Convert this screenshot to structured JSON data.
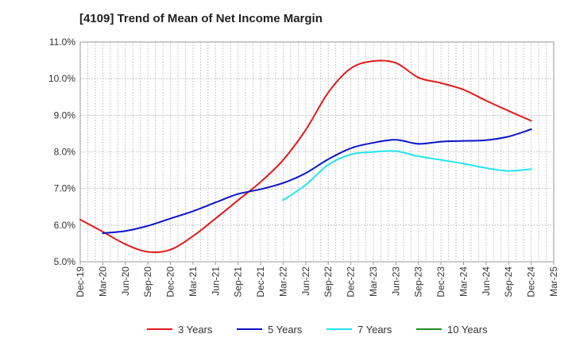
{
  "chart_data": {
    "type": "line",
    "title": "[4109]  Trend of Mean of Net Income Margin",
    "xlabel": "",
    "ylabel": "",
    "x_ticks": [
      "Dec-19",
      "Mar-20",
      "Jun-20",
      "Sep-20",
      "Dec-20",
      "Mar-21",
      "Jun-21",
      "Sep-21",
      "Dec-21",
      "Mar-22",
      "Jun-22",
      "Sep-22",
      "Dec-22",
      "Mar-23",
      "Jun-23",
      "Sep-23",
      "Dec-23",
      "Mar-24",
      "Jun-24",
      "Sep-24",
      "Dec-24",
      "Mar-25"
    ],
    "y_ticks": [
      "5.0%",
      "6.0%",
      "7.0%",
      "8.0%",
      "9.0%",
      "10.0%",
      "11.0%"
    ],
    "ylim": [
      5.0,
      11.0
    ],
    "grid": true,
    "legend_position": "bottom",
    "series": [
      {
        "name": "3 Years",
        "color": "#e31a1c",
        "x": [
          "Dec-19",
          "Mar-20",
          "Jun-20",
          "Sep-20",
          "Dec-20",
          "Mar-21",
          "Jun-21",
          "Sep-21",
          "Dec-21",
          "Mar-22",
          "Jun-22",
          "Sep-22",
          "Dec-22",
          "Mar-23",
          "Jun-23",
          "Sep-23",
          "Dec-23",
          "Mar-24",
          "Jun-24",
          "Sep-24",
          "Dec-24"
        ],
        "values": [
          6.15,
          5.82,
          5.48,
          5.27,
          5.33,
          5.7,
          6.18,
          6.68,
          7.18,
          7.78,
          8.6,
          9.62,
          10.28,
          10.48,
          10.43,
          10.03,
          9.88,
          9.7,
          9.4,
          9.12,
          8.85
        ]
      },
      {
        "name": "5 Years",
        "color": "#0a14c8",
        "x": [
          "Mar-20",
          "Jun-20",
          "Sep-20",
          "Dec-20",
          "Mar-21",
          "Jun-21",
          "Sep-21",
          "Dec-21",
          "Mar-22",
          "Jun-22",
          "Sep-22",
          "Dec-22",
          "Mar-23",
          "Jun-23",
          "Sep-23",
          "Dec-23",
          "Mar-24",
          "Jun-24",
          "Sep-24",
          "Dec-24"
        ],
        "values": [
          5.78,
          5.84,
          5.98,
          6.18,
          6.38,
          6.62,
          6.85,
          6.98,
          7.15,
          7.42,
          7.8,
          8.1,
          8.25,
          8.33,
          8.22,
          8.28,
          8.3,
          8.32,
          8.42,
          8.62
        ]
      },
      {
        "name": "7 Years",
        "color": "#22e5f0",
        "x": [
          "Mar-22",
          "Jun-22",
          "Sep-22",
          "Dec-22",
          "Mar-23",
          "Jun-23",
          "Sep-23",
          "Dec-23",
          "Mar-24",
          "Jun-24",
          "Sep-24",
          "Dec-24"
        ],
        "values": [
          6.68,
          7.1,
          7.65,
          7.93,
          8.0,
          8.02,
          7.88,
          7.78,
          7.68,
          7.56,
          7.48,
          7.53
        ]
      },
      {
        "name": "10 Years",
        "color": "#1e8c1e",
        "x": [],
        "values": []
      }
    ]
  }
}
